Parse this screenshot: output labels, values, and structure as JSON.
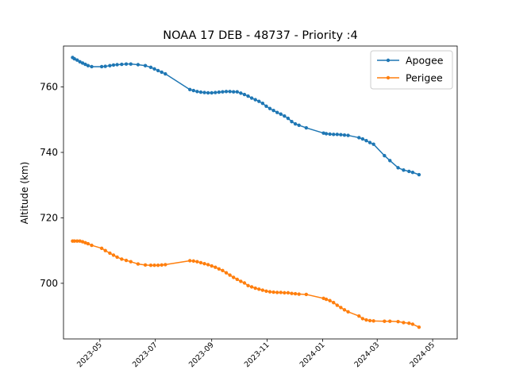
{
  "chart_data": {
    "type": "line",
    "title": "NOAA 17 DEB - 48737 - Priority :4",
    "xlabel": "",
    "ylabel": "Altitude (km)",
    "x_ticks": [
      "2023-05",
      "2023-07",
      "2023-09",
      "2023-11",
      "2024-01",
      "2024-03",
      "2024-05"
    ],
    "y_ticks": [
      700,
      720,
      740,
      760
    ],
    "xlim": [
      "2023-03-22",
      "2024-05-28"
    ],
    "ylim": [
      683,
      772.5
    ],
    "grid": false,
    "legend_position": "upper right",
    "series": [
      {
        "name": "Apogee",
        "color": "#1f77b4",
        "points": [
          [
            "2023-04-01",
            769.0
          ],
          [
            "2023-04-03",
            768.6
          ],
          [
            "2023-04-06",
            768.2
          ],
          [
            "2023-04-09",
            767.7
          ],
          [
            "2023-04-12",
            767.3
          ],
          [
            "2023-04-15",
            766.9
          ],
          [
            "2023-04-18",
            766.5
          ],
          [
            "2023-04-22",
            766.2
          ],
          [
            "2023-05-03",
            766.2
          ],
          [
            "2023-05-07",
            766.3
          ],
          [
            "2023-05-12",
            766.5
          ],
          [
            "2023-05-16",
            766.7
          ],
          [
            "2023-05-20",
            766.8
          ],
          [
            "2023-05-25",
            766.9
          ],
          [
            "2023-05-30",
            767.0
          ],
          [
            "2023-06-04",
            767.0
          ],
          [
            "2023-06-12",
            766.8
          ],
          [
            "2023-06-20",
            766.5
          ],
          [
            "2023-06-26",
            766.0
          ],
          [
            "2023-06-30",
            765.5
          ],
          [
            "2023-07-04",
            765.0
          ],
          [
            "2023-07-08",
            764.5
          ],
          [
            "2023-07-12",
            764.0
          ],
          [
            "2023-08-08",
            759.2
          ],
          [
            "2023-08-12",
            758.9
          ],
          [
            "2023-08-16",
            758.6
          ],
          [
            "2023-08-20",
            758.4
          ],
          [
            "2023-08-24",
            758.3
          ],
          [
            "2023-08-28",
            758.2
          ],
          [
            "2023-09-01",
            758.2
          ],
          [
            "2023-09-05",
            758.3
          ],
          [
            "2023-09-09",
            758.4
          ],
          [
            "2023-09-13",
            758.5
          ],
          [
            "2023-09-17",
            758.6
          ],
          [
            "2023-09-21",
            758.6
          ],
          [
            "2023-09-25",
            758.5
          ],
          [
            "2023-09-29",
            758.5
          ],
          [
            "2023-10-03",
            758.1
          ],
          [
            "2023-10-07",
            757.7
          ],
          [
            "2023-10-11",
            757.2
          ],
          [
            "2023-10-15",
            756.6
          ],
          [
            "2023-10-19",
            756.1
          ],
          [
            "2023-10-23",
            755.6
          ],
          [
            "2023-10-27",
            755.0
          ],
          [
            "2023-10-31",
            754.1
          ],
          [
            "2023-11-04",
            753.4
          ],
          [
            "2023-11-08",
            752.8
          ],
          [
            "2023-11-12",
            752.2
          ],
          [
            "2023-11-16",
            751.7
          ],
          [
            "2023-11-20",
            751.1
          ],
          [
            "2023-11-24",
            750.4
          ],
          [
            "2023-11-28",
            749.4
          ],
          [
            "2023-12-02",
            748.7
          ],
          [
            "2023-12-06",
            748.3
          ],
          [
            "2023-12-14",
            747.5
          ],
          [
            "2024-01-02",
            745.9
          ],
          [
            "2024-01-05",
            745.7
          ],
          [
            "2024-01-09",
            745.6
          ],
          [
            "2024-01-13",
            745.5
          ],
          [
            "2024-01-17",
            745.5
          ],
          [
            "2024-01-21",
            745.4
          ],
          [
            "2024-01-25",
            745.3
          ],
          [
            "2024-01-29",
            745.2
          ],
          [
            "2024-02-10",
            744.5
          ],
          [
            "2024-02-14",
            744.1
          ],
          [
            "2024-02-18",
            743.6
          ],
          [
            "2024-02-22",
            743.0
          ],
          [
            "2024-02-26",
            742.5
          ],
          [
            "2024-03-09",
            739.0
          ],
          [
            "2024-03-15",
            737.5
          ],
          [
            "2024-03-24",
            735.3
          ],
          [
            "2024-03-30",
            734.6
          ],
          [
            "2024-04-05",
            734.2
          ],
          [
            "2024-04-09",
            733.9
          ],
          [
            "2024-04-16",
            733.2
          ]
        ]
      },
      {
        "name": "Perigee",
        "color": "#ff7f0e",
        "points": [
          [
            "2023-04-01",
            712.9
          ],
          [
            "2023-04-03",
            712.9
          ],
          [
            "2023-04-06",
            712.9
          ],
          [
            "2023-04-09",
            712.9
          ],
          [
            "2023-04-12",
            712.7
          ],
          [
            "2023-04-15",
            712.4
          ],
          [
            "2023-04-18",
            712.1
          ],
          [
            "2023-04-22",
            711.6
          ],
          [
            "2023-05-03",
            710.7
          ],
          [
            "2023-05-07",
            710.0
          ],
          [
            "2023-05-12",
            709.2
          ],
          [
            "2023-05-16",
            708.6
          ],
          [
            "2023-05-20",
            708.0
          ],
          [
            "2023-05-25",
            707.4
          ],
          [
            "2023-05-30",
            707.0
          ],
          [
            "2023-06-04",
            706.6
          ],
          [
            "2023-06-12",
            705.9
          ],
          [
            "2023-06-20",
            705.6
          ],
          [
            "2023-06-26",
            705.5
          ],
          [
            "2023-06-30",
            705.5
          ],
          [
            "2023-07-04",
            705.5
          ],
          [
            "2023-07-08",
            705.6
          ],
          [
            "2023-07-12",
            705.7
          ],
          [
            "2023-08-08",
            706.9
          ],
          [
            "2023-08-12",
            706.8
          ],
          [
            "2023-08-16",
            706.6
          ],
          [
            "2023-08-20",
            706.3
          ],
          [
            "2023-08-24",
            706.0
          ],
          [
            "2023-08-28",
            705.7
          ],
          [
            "2023-09-01",
            705.3
          ],
          [
            "2023-09-05",
            704.9
          ],
          [
            "2023-09-09",
            704.4
          ],
          [
            "2023-09-13",
            703.9
          ],
          [
            "2023-09-17",
            703.2
          ],
          [
            "2023-09-21",
            702.5
          ],
          [
            "2023-09-25",
            701.8
          ],
          [
            "2023-09-29",
            701.2
          ],
          [
            "2023-10-03",
            700.6
          ],
          [
            "2023-10-07",
            700.1
          ],
          [
            "2023-10-11",
            699.3
          ],
          [
            "2023-10-15",
            698.9
          ],
          [
            "2023-10-19",
            698.5
          ],
          [
            "2023-10-23",
            698.2
          ],
          [
            "2023-10-27",
            697.9
          ],
          [
            "2023-10-31",
            697.6
          ],
          [
            "2023-11-04",
            697.4
          ],
          [
            "2023-11-08",
            697.3
          ],
          [
            "2023-11-12",
            697.2
          ],
          [
            "2023-11-16",
            697.2
          ],
          [
            "2023-11-20",
            697.1
          ],
          [
            "2023-11-24",
            697.1
          ],
          [
            "2023-11-28",
            696.9
          ],
          [
            "2023-12-02",
            696.8
          ],
          [
            "2023-12-06",
            696.7
          ],
          [
            "2023-12-14",
            696.6
          ],
          [
            "2024-01-02",
            695.4
          ],
          [
            "2024-01-05",
            695.1
          ],
          [
            "2024-01-09",
            694.7
          ],
          [
            "2024-01-13",
            694.1
          ],
          [
            "2024-01-17",
            693.3
          ],
          [
            "2024-01-21",
            692.6
          ],
          [
            "2024-01-25",
            691.9
          ],
          [
            "2024-01-29",
            691.3
          ],
          [
            "2024-02-10",
            690.0
          ],
          [
            "2024-02-14",
            689.2
          ],
          [
            "2024-02-18",
            688.8
          ],
          [
            "2024-02-22",
            688.6
          ],
          [
            "2024-02-26",
            688.5
          ],
          [
            "2024-03-09",
            688.4
          ],
          [
            "2024-03-15",
            688.4
          ],
          [
            "2024-03-24",
            688.3
          ],
          [
            "2024-03-30",
            688.0
          ],
          [
            "2024-04-05",
            687.8
          ],
          [
            "2024-04-09",
            687.5
          ],
          [
            "2024-04-16",
            686.6
          ]
        ]
      }
    ]
  }
}
